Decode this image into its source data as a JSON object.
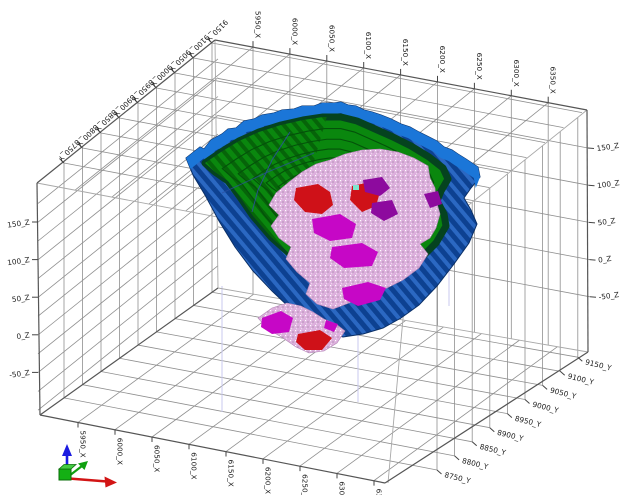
{
  "viewport": {
    "background": "#ffffff",
    "axes": {
      "x_ticks": [
        "5950_X",
        "6000_X",
        "6050_X",
        "6100_X",
        "6150_X",
        "6200_X",
        "6250_X",
        "6300_X",
        "6350_X"
      ],
      "y_ticks": [
        "8750_Y",
        "8800_Y",
        "8850_Y",
        "8900_Y",
        "8950_Y",
        "9000_Y",
        "9050_Y",
        "9100_Y",
        "9150_Y"
      ],
      "z_ticks": [
        "150_Z",
        "100_Z",
        "50_Z",
        "0_Z",
        "-50_Z"
      ]
    },
    "colors": {
      "pit_shell_blue": "#0d4191",
      "pit_shell_blue_stripe": "#2b68c2",
      "pit_rim_blue": "#1b76d8",
      "bench_green": "#0a870e",
      "bench_green_stripe": "#066409",
      "bench_edge_dark": "#05431f",
      "ring_dark_green": "#04510a",
      "ore_pink": "#ddb0dd",
      "ore_magenta": "#c607c6",
      "ore_purple": "#8d0a9e",
      "ore_red": "#cf1118",
      "ore_cyan": "#7de6cf",
      "grid_gray": "#8f8f8f",
      "edge_gray": "#555555",
      "hidden_line_lavender": "#c9c9ef",
      "triad_x_red": "#d21414",
      "triad_y_green": "#0fa00f",
      "triad_z_blue": "#1b1be0"
    }
  }
}
